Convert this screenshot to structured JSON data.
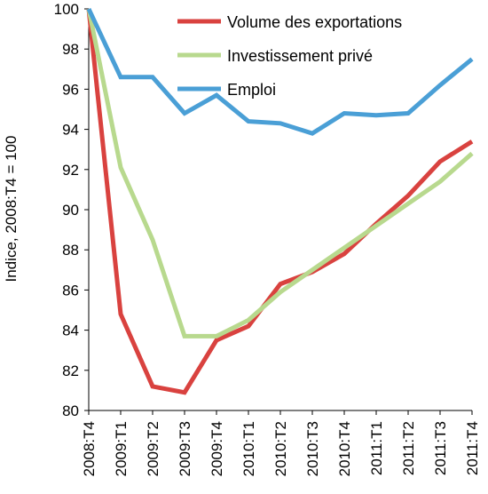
{
  "chart_data": {
    "type": "line",
    "title": "",
    "xlabel": "",
    "ylabel": "Indice, 2008:T4 = 100",
    "ylim": [
      80,
      100
    ],
    "yticks": [
      80,
      82,
      84,
      86,
      88,
      90,
      92,
      94,
      96,
      98,
      100
    ],
    "grid": false,
    "legend_position": "top-right",
    "categories": [
      "2008:T4",
      "2009:T1",
      "2009:T2",
      "2009:T3",
      "2009:T4",
      "2010:T1",
      "2010:T2",
      "2010:T3",
      "2010:T4",
      "2011:T1",
      "2011:T2",
      "2011:T3",
      "2011:T4"
    ],
    "series": [
      {
        "name": "Volume des exportations",
        "color": "#d9423f",
        "values": [
          100,
          84.8,
          81.2,
          80.9,
          83.5,
          84.2,
          86.3,
          86.9,
          87.8,
          89.3,
          90.7,
          92.4,
          93.4
        ]
      },
      {
        "name": "Investissement  privé",
        "color": "#b8d98e",
        "values": [
          100,
          92.1,
          88.5,
          83.7,
          83.7,
          84.5,
          85.9,
          87.0,
          88.1,
          89.2,
          90.3,
          91.4,
          92.8
        ]
      },
      {
        "name": "Emploi",
        "color": "#4a9fd6",
        "values": [
          100,
          96.6,
          96.6,
          94.8,
          95.7,
          94.4,
          94.3,
          93.8,
          94.8,
          94.7,
          94.8,
          96.2,
          97.5
        ]
      }
    ]
  }
}
